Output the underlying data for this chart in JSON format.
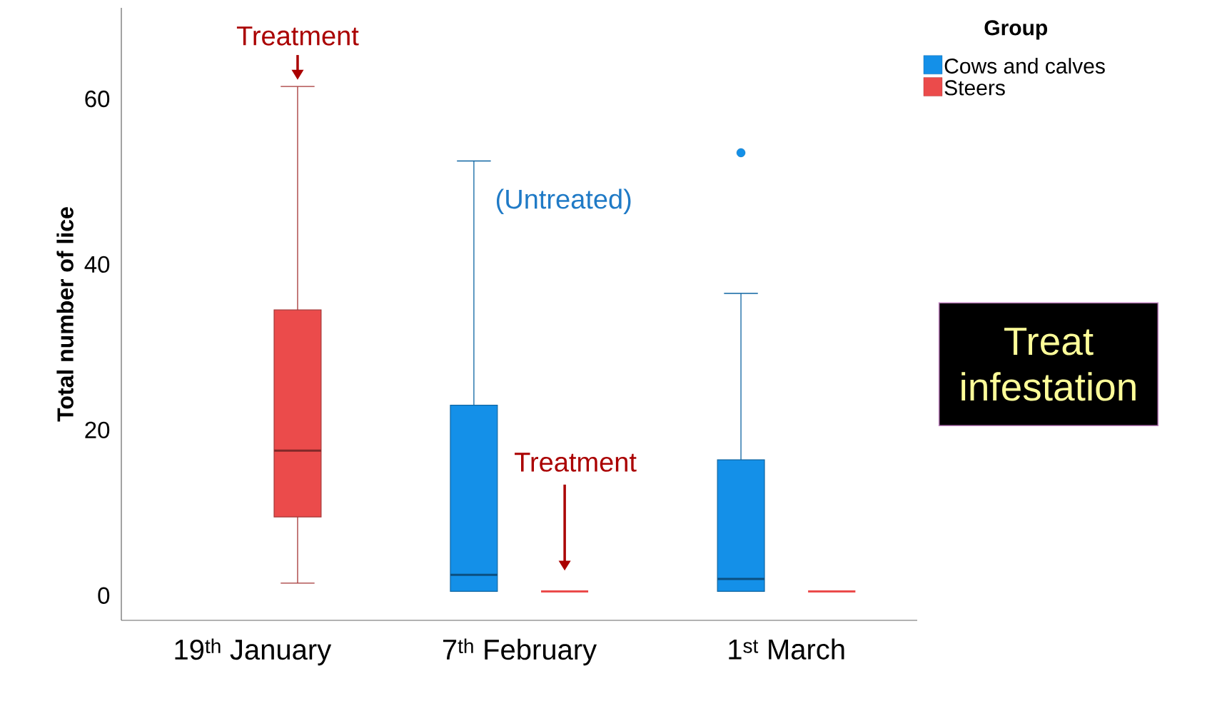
{
  "chart_data": {
    "type": "box",
    "ylabel": "Total number of lice",
    "legend_title": "Group",
    "legend": "top right",
    "categories": [
      "19$^{th}$ January",
      "7$^{th}$ February",
      "1$^{st}$ March"
    ],
    "ylim": [
      -3,
      71
    ],
    "yticks": [
      0,
      20,
      40,
      60
    ],
    "series": [
      {
        "name": "Cows and calves",
        "color": "#1490e8",
        "boxes": [
          null,
          {
            "low": 0.5,
            "q1": 0.5,
            "median": 2.5,
            "q3": 23,
            "high": 52.5
          },
          {
            "low": 0.5,
            "q1": 0.5,
            "median": 2,
            "q3": 16.4,
            "high": 36.5,
            "outliers": [
              53.5
            ]
          }
        ]
      },
      {
        "name": "Steers",
        "color": "#eb4b4b",
        "boxes": [
          {
            "low": 1.5,
            "q1": 9.5,
            "median": 17.5,
            "q3": 34.5,
            "high": 61.5
          },
          {
            "low": 0.5,
            "q1": 0.5,
            "median": 0.5,
            "q3": 0.5,
            "high": 0.5
          },
          {
            "low": 0.5,
            "q1": 0.5,
            "median": 0.5,
            "q3": 0.5,
            "high": 0.5
          }
        ]
      }
    ],
    "annotations": [
      "Treatment",
      "(Untreated)",
      "Treatment",
      "Treat infestation"
    ]
  }
}
